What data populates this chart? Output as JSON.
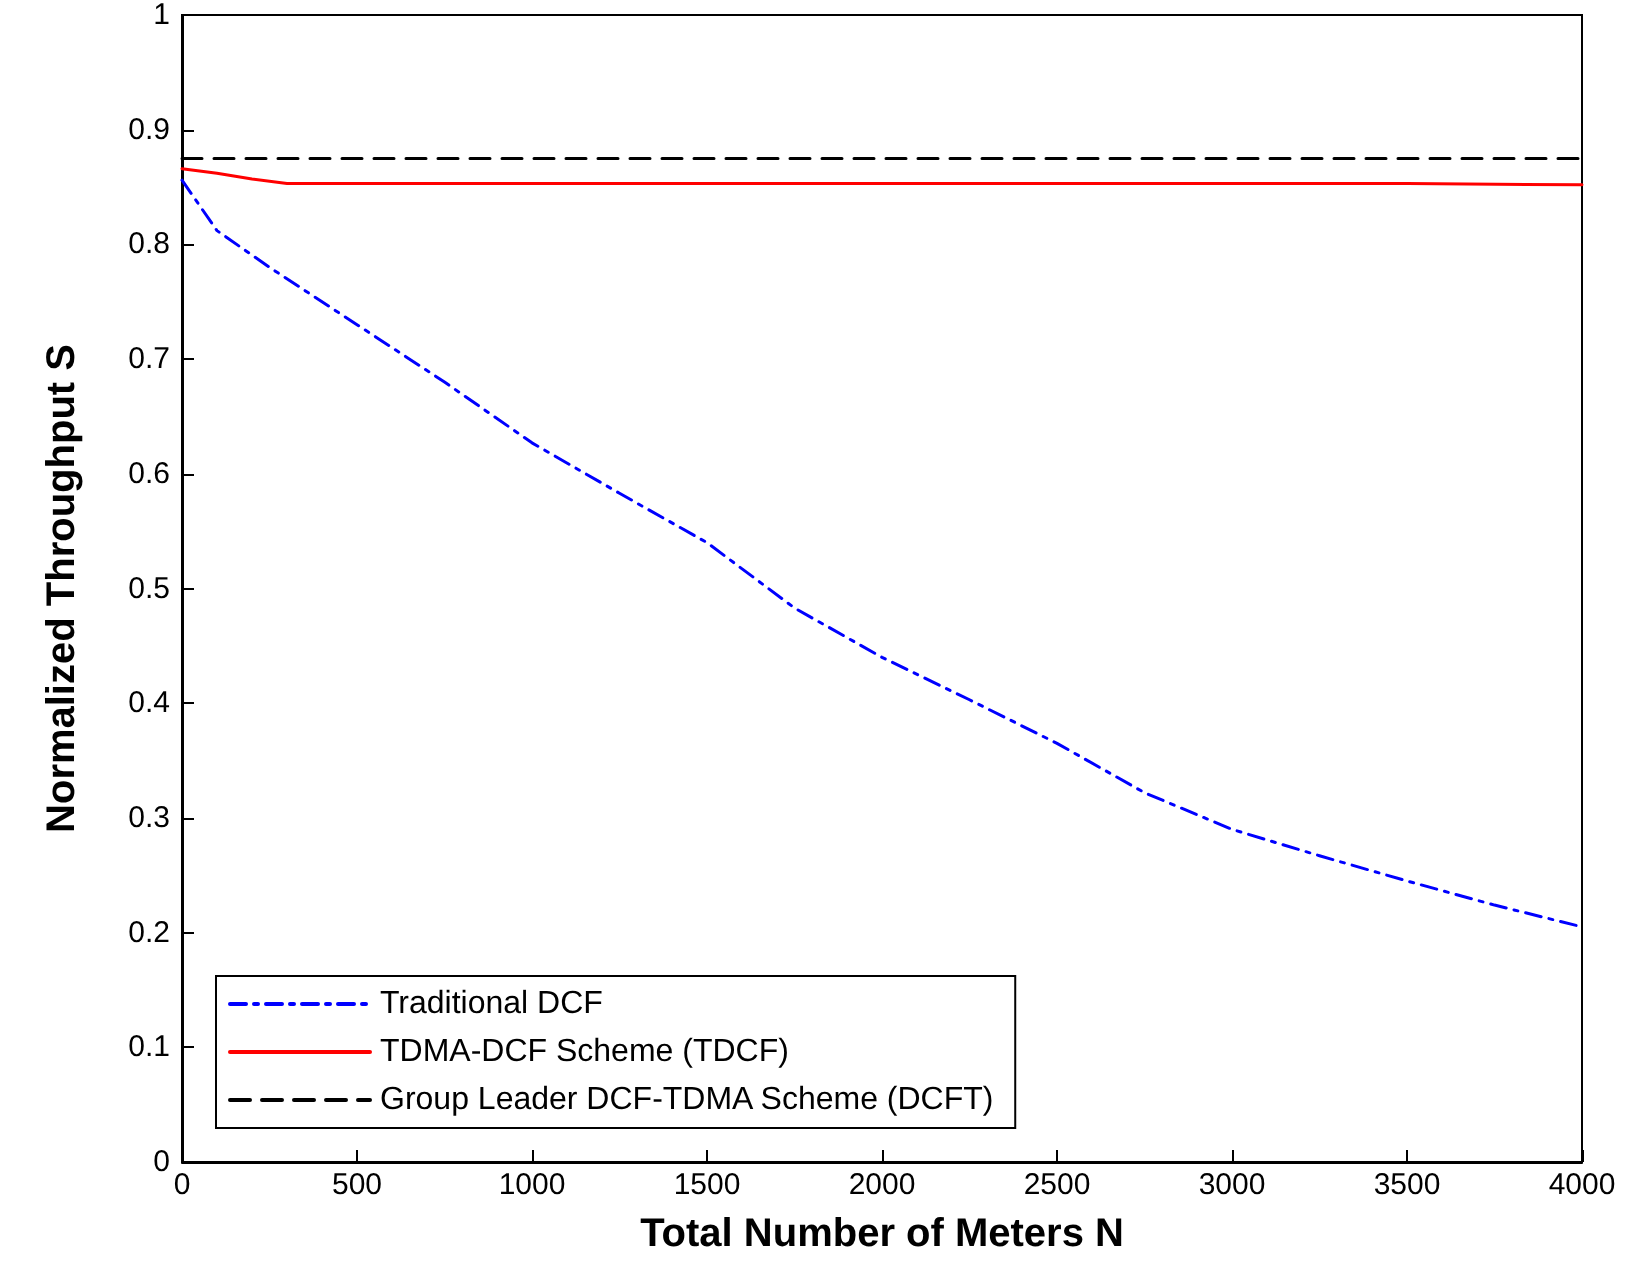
{
  "chart_data": {
    "type": "line",
    "xlabel": "Total Number of Meters N",
    "ylabel": "Normalized Throughput S",
    "xlim": [
      0,
      4000
    ],
    "xticks": [
      0,
      500,
      1000,
      1500,
      2000,
      2500,
      3000,
      3500,
      4000
    ],
    "ylim": [
      0,
      1
    ],
    "yticks": [
      0,
      0.1,
      0.2,
      0.3,
      0.4,
      0.5,
      0.6,
      0.7,
      0.8,
      0.9,
      1
    ],
    "grid": false,
    "legend": "bottom left",
    "marker": "none",
    "series": [
      {
        "name": "Traditional DCF",
        "color": "#0000ff",
        "line_style": "dashdot",
        "x": [
          0,
          100,
          250,
          500,
          750,
          1000,
          1250,
          1500,
          1750,
          2000,
          2250,
          2500,
          2750,
          3000,
          3250,
          3500,
          3750,
          4000
        ],
        "values": [
          0.856,
          0.812,
          0.78,
          0.73,
          0.68,
          0.627,
          0.583,
          0.54,
          0.483,
          0.44,
          0.403,
          0.365,
          0.322,
          0.29,
          0.267,
          0.245,
          0.224,
          0.205
        ]
      },
      {
        "name": "TDMA-DCF Scheme (TDCF)",
        "color": "#ff0000",
        "line_style": "solid",
        "x": [
          0,
          100,
          200,
          300,
          500,
          1000,
          1500,
          2000,
          2500,
          3000,
          3500,
          4000
        ],
        "values": [
          0.866,
          0.862,
          0.857,
          0.853,
          0.853,
          0.853,
          0.853,
          0.853,
          0.853,
          0.853,
          0.853,
          0.852
        ]
      },
      {
        "name": "Group Leader DCF-TDMA Scheme (DCFT)",
        "color": "#000000",
        "line_style": "dashed",
        "x": [
          0,
          4000
        ],
        "values": [
          0.875,
          0.875
        ]
      }
    ]
  }
}
